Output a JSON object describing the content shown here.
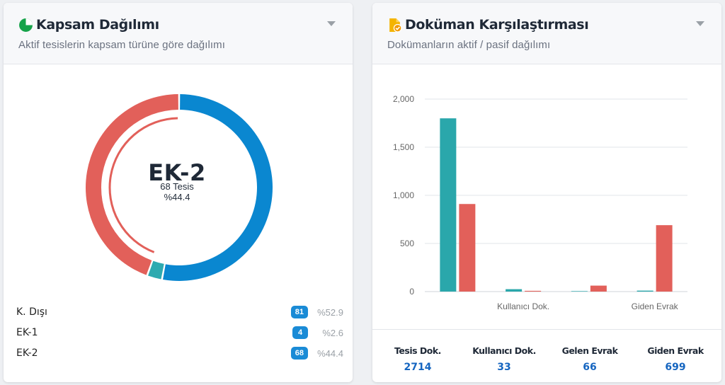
{
  "left_card": {
    "title": "Kapsam Dağılımı",
    "subtitle": "Aktif tesislerin kapsam türüne göre dağılımı",
    "icon": "pie-chart-icon",
    "center": {
      "name": "EK-2",
      "count": "68 Tesis",
      "percent": "%44.4"
    },
    "legend": [
      {
        "name": "K. Dışı",
        "count": "81",
        "percent": "%52.9"
      },
      {
        "name": "EK-1",
        "count": "4",
        "percent": "%2.6"
      },
      {
        "name": "EK-2",
        "count": "68",
        "percent": "%44.4"
      }
    ]
  },
  "right_card": {
    "title": "Doküman Karşılaştırması",
    "subtitle": "Dokümanların aktif / pasif dağılımı",
    "icon": "document-check-icon",
    "stats": [
      {
        "label": "Tesis Dok.",
        "value": "2714"
      },
      {
        "label": "Kullanıcı Dok.",
        "value": "33"
      },
      {
        "label": "Gelen Evrak",
        "value": "66"
      },
      {
        "label": "Giden Evrak",
        "value": "699"
      }
    ]
  },
  "chart_data": [
    {
      "type": "pie",
      "variant": "donut",
      "categories": [
        "K. Dışı",
        "EK-1",
        "EK-2"
      ],
      "values": [
        81,
        4,
        68
      ],
      "percents": [
        52.9,
        2.6,
        44.4
      ],
      "colors": [
        "#0a87d0",
        "#2eaab0",
        "#e2605a"
      ],
      "highlighted": "EK-2"
    },
    {
      "type": "bar",
      "categories": [
        "Tesis Dok.",
        "Kullanıcı Dok.",
        "Gelen Evrak",
        "Giden Evrak"
      ],
      "tick_labels_shown": [
        "",
        "Kullanıcı Dok.",
        "",
        "Giden Evrak"
      ],
      "series": [
        {
          "values": [
            1800,
            25,
            5,
            10
          ],
          "color": "#2aa7ab"
        },
        {
          "values": [
            910,
            8,
            62,
            690
          ],
          "color": "#e2605a"
        }
      ],
      "ylim": [
        0,
        2000
      ],
      "yticks": [
        0,
        500,
        1000,
        1500,
        2000
      ],
      "ytick_labels": [
        "0",
        "500",
        "1,000",
        "1,500",
        "2,000"
      ],
      "grid": true
    }
  ]
}
